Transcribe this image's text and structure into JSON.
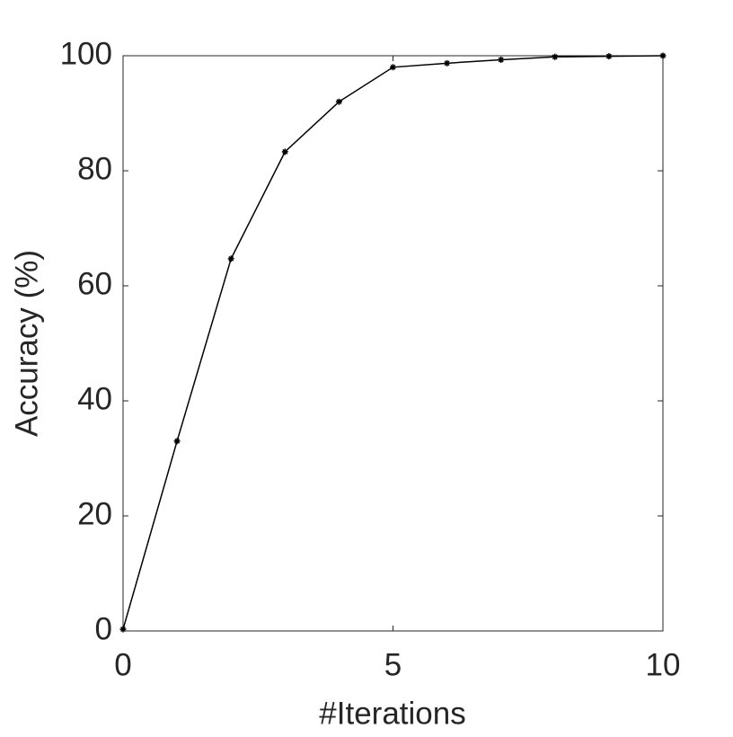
{
  "chart_data": {
    "type": "line",
    "xlabel": "#Iterations",
    "ylabel": "Accuracy (%)",
    "x": [
      0,
      1,
      2,
      3,
      4,
      5,
      6,
      7,
      8,
      9,
      10
    ],
    "series": [
      {
        "color": "#000000",
        "values": [
          0.3,
          33,
          64.7,
          83.3,
          92,
          98,
          98.7,
          99.3,
          99.8,
          99.9,
          100
        ]
      }
    ],
    "xlim": [
      0,
      10
    ],
    "xticks": [
      0,
      5,
      10
    ],
    "ylim": [
      0,
      100
    ],
    "yticks": [
      0,
      20,
      40,
      60,
      80,
      100
    ],
    "grid": false,
    "marker": "asterisk"
  }
}
